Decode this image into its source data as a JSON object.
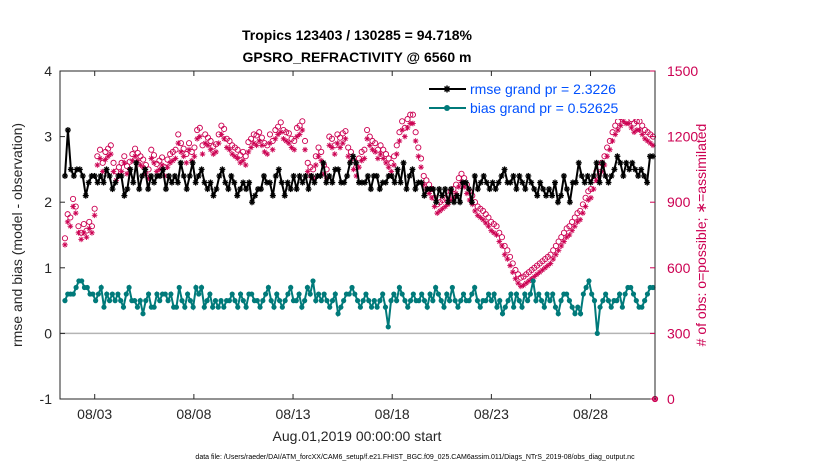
{
  "chart_data": {
    "type": "line",
    "title": "Tropics 123403 / 130285 = 94.718%",
    "subtitle": "GPSRO_REFRACTIVITY @ 6560 m",
    "xlabel": "Aug.01,2019 00:00:00 start",
    "ylabel_left": "rmse and bias (model - observation)",
    "ylabel_right": "# of obs: o=possible; ∗=assimilated",
    "footnote": "data file: /Users/raeder/DAI/ATM_forcXX/CAM6_setup/f.e21.FHIST_BGC.f09_025.CAM6assim.011/Diags_NTrS_2019-08/obs_diag_output.nc",
    "x_ticks": [
      {
        "label": "08/03",
        "day": 3
      },
      {
        "label": "08/08",
        "day": 8
      },
      {
        "label": "08/13",
        "day": 13
      },
      {
        "label": "08/18",
        "day": 18
      },
      {
        "label": "08/23",
        "day": 23
      },
      {
        "label": "08/28",
        "day": 28
      }
    ],
    "xlim": [
      1.25,
      31.25
    ],
    "ylim_left": [
      -1,
      4
    ],
    "yticks_left": [
      -1,
      0,
      1,
      2,
      3,
      4
    ],
    "ylim_right": [
      0,
      1500
    ],
    "yticks_right": [
      0,
      300,
      600,
      900,
      1200,
      1500
    ],
    "series": [
      {
        "name": "rmse",
        "legend": "rmse grand pr = 2.3226",
        "color": "#000000",
        "marker": "star",
        "axis": "left",
        "values": [
          2.4,
          3.1,
          2.5,
          2.4,
          2.5,
          2.5,
          2.4,
          2.1,
          2.3,
          2.4,
          2.4,
          2.3,
          2.4,
          2.3,
          2.5,
          2.4,
          2.2,
          2.3,
          2.4,
          2.4,
          2.1,
          2.2,
          2.5,
          2.3,
          2.6,
          2.2,
          2.4,
          2.5,
          2.2,
          2.4,
          2.3,
          2.4,
          2.4,
          2.5,
          2.2,
          2.4,
          2.3,
          2.4,
          2.3,
          2.6,
          2.4,
          2.2,
          2.4,
          2.6,
          2.3,
          2.4,
          2.5,
          2.3,
          2.2,
          2.3,
          2.1,
          2.2,
          2.4,
          2.5,
          2.3,
          2.2,
          2.4,
          2.3,
          2.1,
          2.2,
          2.3,
          2.2,
          2.3,
          2.0,
          2.1,
          2.2,
          2.2,
          2.4,
          2.3,
          2.3,
          2.1,
          2.4,
          2.5,
          2.3,
          2.1,
          2.3,
          2.2,
          2.4,
          2.2,
          2.4,
          2.3,
          2.4,
          2.2,
          2.4,
          2.3,
          2.4,
          2.4,
          2.6,
          2.3,
          2.4,
          2.3,
          2.5,
          2.5,
          2.3,
          2.3,
          2.4,
          2.6,
          2.7,
          2.6,
          2.3,
          2.3,
          2.3,
          2.4,
          2.2,
          2.4,
          2.4,
          2.2,
          2.3,
          2.3,
          2.4,
          2.4,
          2.3,
          2.5,
          2.3,
          2.6,
          2.2,
          2.4,
          2.5,
          2.2,
          2.3,
          2.3,
          2.1,
          2.2,
          2.2,
          2.2,
          2.0,
          2.2,
          2.1,
          2.2,
          2.0,
          2.2,
          2.0,
          2.1,
          2.0,
          2.3,
          2.3,
          2.2,
          2.0,
          2.4,
          2.2,
          2.3,
          2.4,
          2.3,
          2.2,
          2.3,
          2.2,
          2.3,
          2.4,
          2.5,
          2.3,
          2.3,
          2.4,
          2.2,
          2.4,
          2.3,
          2.2,
          2.4,
          2.3,
          2.2,
          2.1,
          2.3,
          2.2,
          2.1,
          2.2,
          2.1,
          2.3,
          2.0,
          2.1,
          2.4,
          2.2,
          2.0,
          2.3,
          2.3,
          2.6,
          2.4,
          2.3,
          2.4,
          2.3,
          2.4,
          2.6,
          2.3,
          2.6,
          2.4,
          2.3,
          2.4,
          2.5,
          2.7,
          2.6,
          2.4,
          2.6,
          2.5,
          2.6,
          2.5,
          2.4,
          2.5,
          2.4,
          2.3,
          2.7,
          2.7
        ]
      },
      {
        "name": "bias",
        "legend": "bias grand pr = 0.52625",
        "color": "#007a7a",
        "marker": "dot",
        "axis": "left",
        "values": [
          0.5,
          0.6,
          0.6,
          0.6,
          0.7,
          0.8,
          0.8,
          0.7,
          0.7,
          0.6,
          0.6,
          0.5,
          0.6,
          0.7,
          0.4,
          0.6,
          0.5,
          0.6,
          0.5,
          0.6,
          0.5,
          0.4,
          0.6,
          0.7,
          0.5,
          0.5,
          0.4,
          0.5,
          0.3,
          0.5,
          0.6,
          0.4,
          0.4,
          0.6,
          0.5,
          0.6,
          0.6,
          0.5,
          0.6,
          0.4,
          0.4,
          0.7,
          0.5,
          0.4,
          0.6,
          0.5,
          0.4,
          0.7,
          0.6,
          0.7,
          0.4,
          0.5,
          0.6,
          0.4,
          0.5,
          0.4,
          0.5,
          0.4,
          0.5,
          0.5,
          0.6,
          0.5,
          0.4,
          0.6,
          0.5,
          0.4,
          0.6,
          0.6,
          0.5,
          0.5,
          0.4,
          0.5,
          0.6,
          0.7,
          0.5,
          0.4,
          0.6,
          0.5,
          0.4,
          0.5,
          0.6,
          0.7,
          0.5,
          0.5,
          0.6,
          0.4,
          0.5,
          0.7,
          0.6,
          0.8,
          0.5,
          0.6,
          0.5,
          0.6,
          0.5,
          0.4,
          0.5,
          0.6,
          0.3,
          0.4,
          0.5,
          0.6,
          0.6,
          0.7,
          0.6,
          0.5,
          0.4,
          0.5,
          0.6,
          0.5,
          0.4,
          0.5,
          0.4,
          0.5,
          0.6,
          0.4,
          0.1,
          0.5,
          0.6,
          0.5,
          0.7,
          0.6,
          0.5,
          0.4,
          0.5,
          0.6,
          0.5,
          0.5,
          0.6,
          0.5,
          0.4,
          0.6,
          0.5,
          0.7,
          0.6,
          0.5,
          0.4,
          0.6,
          0.5,
          0.7,
          0.5,
          0.4,
          0.5,
          0.6,
          0.5,
          0.5,
          0.6,
          0.7,
          0.5,
          0.4,
          0.5,
          0.5,
          0.6,
          0.5,
          0.6,
          0.4,
          0.5,
          0.3,
          0.4,
          0.5,
          0.6,
          0.4,
          0.6,
          0.5,
          0.4,
          0.6,
          0.5,
          0.6,
          0.8,
          0.5,
          0.6,
          0.5,
          0.4,
          0.6,
          0.5,
          0.6,
          0.4,
          0.3,
          0.5,
          0.6,
          0.6,
          0.5,
          0.4,
          0.3,
          0.4,
          0.3,
          0.6,
          0.7,
          0.8,
          0.6,
          0.5,
          0.0,
          0.4,
          0.5,
          0.6,
          0.5,
          0.4,
          0.5,
          0.5,
          0.6,
          0.4,
          0.6,
          0.7,
          0.7,
          0.6,
          0.5,
          0.4,
          0.4,
          0.5,
          0.6,
          0.7,
          0.7
        ]
      },
      {
        "name": "obs possible",
        "color": "#cc0052",
        "marker": "circle",
        "axis": "right",
        "values": [
          735,
          845,
          830,
          915,
          880,
          790,
          760,
          800,
          770,
          810,
          790,
          870,
          1110,
          1140,
          1080,
          1130,
          1145,
          1160,
          1080,
          1040,
          1060,
          1080,
          1110,
          1065,
          1085,
          1120,
          1145,
          1125,
          1110,
          1095,
          1070,
          1050,
          1140,
          1115,
          1075,
          1090,
          1105,
          1060,
          1095,
          1120,
          1130,
          1140,
          1210,
          1170,
          1145,
          1120,
          1170,
          1130,
          1150,
          1230,
          1240,
          1160,
          1210,
          1195,
          1180,
          1155,
          1165,
          1210,
          1250,
          1235,
          1190,
          1180,
          1160,
          1150,
          1140,
          1115,
          1130,
          1110,
          1175,
          1190,
          1210,
          1205,
          1220,
          1195,
          1170,
          1160,
          1210,
          1180,
          1230,
          1245,
          1265,
          1230,
          1220,
          1215,
          1190,
          1180,
          1240,
          1250,
          1270,
          1180,
          1080,
          1060,
          1050,
          1110,
          1150,
          1130,
          1070,
          1050,
          1200,
          1190,
          1160,
          1210,
          1195,
          1215,
          1225,
          1150,
          1130,
          1090,
          1060,
          1100,
          1130,
          1140,
          1230,
          1200,
          1180,
          1170,
          1140,
          1160,
          1140,
          1120,
          1100,
          1080,
          1110,
          1160,
          1220,
          1270,
          1240,
          1280,
          1300,
          1300,
          1220,
          1150,
          1100,
          1020,
          1000,
          980,
          960,
          920,
          890,
          900,
          910,
          920,
          930,
          950,
          960,
          980,
          1010,
          1030,
          1010,
          980,
          950,
          930,
          900,
          880,
          870,
          860,
          845,
          830,
          810,
          800,
          790,
          760,
          740,
          700,
          680,
          650,
          620,
          590,
          570,
          555,
          560,
          570,
          580,
          590,
          600,
          610,
          620,
          630,
          640,
          650,
          660,
          680,
          700,
          720,
          740,
          760,
          780,
          790,
          810,
          830,
          850,
          860,
          890,
          920,
          950,
          960,
          1000,
          1040,
          1060,
          1080,
          1110,
          1150,
          1180,
          1220,
          1250,
          1270,
          1290,
          1310,
          1300,
          1300,
          1280,
          1260,
          1270,
          1270,
          1250,
          1230,
          1220,
          1210,
          1200
        ]
      },
      {
        "name": "obs assimilated",
        "color": "#cc0052",
        "marker": "asterisk",
        "axis": "right",
        "values": [
          705,
          810,
          790,
          880,
          850,
          760,
          730,
          760,
          740,
          780,
          760,
          840,
          1070,
          1100,
          1040,
          1095,
          1110,
          1120,
          1040,
          1000,
          1020,
          1040,
          1080,
          1030,
          1050,
          1090,
          1110,
          1090,
          1070,
          1060,
          1030,
          1010,
          1100,
          1080,
          1040,
          1050,
          1070,
          1020,
          1060,
          1080,
          1090,
          1100,
          1170,
          1130,
          1110,
          1080,
          1140,
          1090,
          1110,
          1190,
          1200,
          1120,
          1170,
          1160,
          1140,
          1120,
          1130,
          1170,
          1210,
          1190,
          1150,
          1140,
          1120,
          1110,
          1100,
          1080,
          1090,
          1070,
          1130,
          1150,
          1170,
          1160,
          1180,
          1160,
          1130,
          1120,
          1170,
          1140,
          1190,
          1210,
          1220,
          1190,
          1180,
          1170,
          1150,
          1140,
          1200,
          1210,
          1230,
          1140,
          1040,
          1020,
          1010,
          1070,
          1110,
          1090,
          1030,
          1010,
          1160,
          1150,
          1120,
          1170,
          1150,
          1170,
          1190,
          1110,
          1090,
          1050,
          1020,
          1060,
          1090,
          1100,
          1190,
          1160,
          1140,
          1130,
          1100,
          1120,
          1100,
          1080,
          1060,
          1040,
          1070,
          1120,
          1180,
          1230,
          1200,
          1240,
          1260,
          1260,
          1180,
          1110,
          1060,
          980,
          960,
          940,
          920,
          880,
          850,
          860,
          870,
          880,
          890,
          910,
          920,
          940,
          970,
          990,
          970,
          940,
          910,
          890,
          860,
          840,
          830,
          820,
          805,
          790,
          770,
          760,
          750,
          720,
          700,
          660,
          640,
          610,
          580,
          550,
          530,
          515,
          520,
          530,
          540,
          550,
          560,
          570,
          580,
          590,
          600,
          610,
          620,
          640,
          660,
          680,
          700,
          720,
          740,
          750,
          770,
          790,
          810,
          820,
          850,
          880,
          910,
          920,
          960,
          1000,
          1020,
          1040,
          1070,
          1110,
          1140,
          1180,
          1210,
          1230,
          1250,
          1270,
          1260,
          1260,
          1240,
          1220,
          1230,
          1230,
          1210,
          1190,
          1180,
          1170,
          1160
        ]
      }
    ]
  }
}
